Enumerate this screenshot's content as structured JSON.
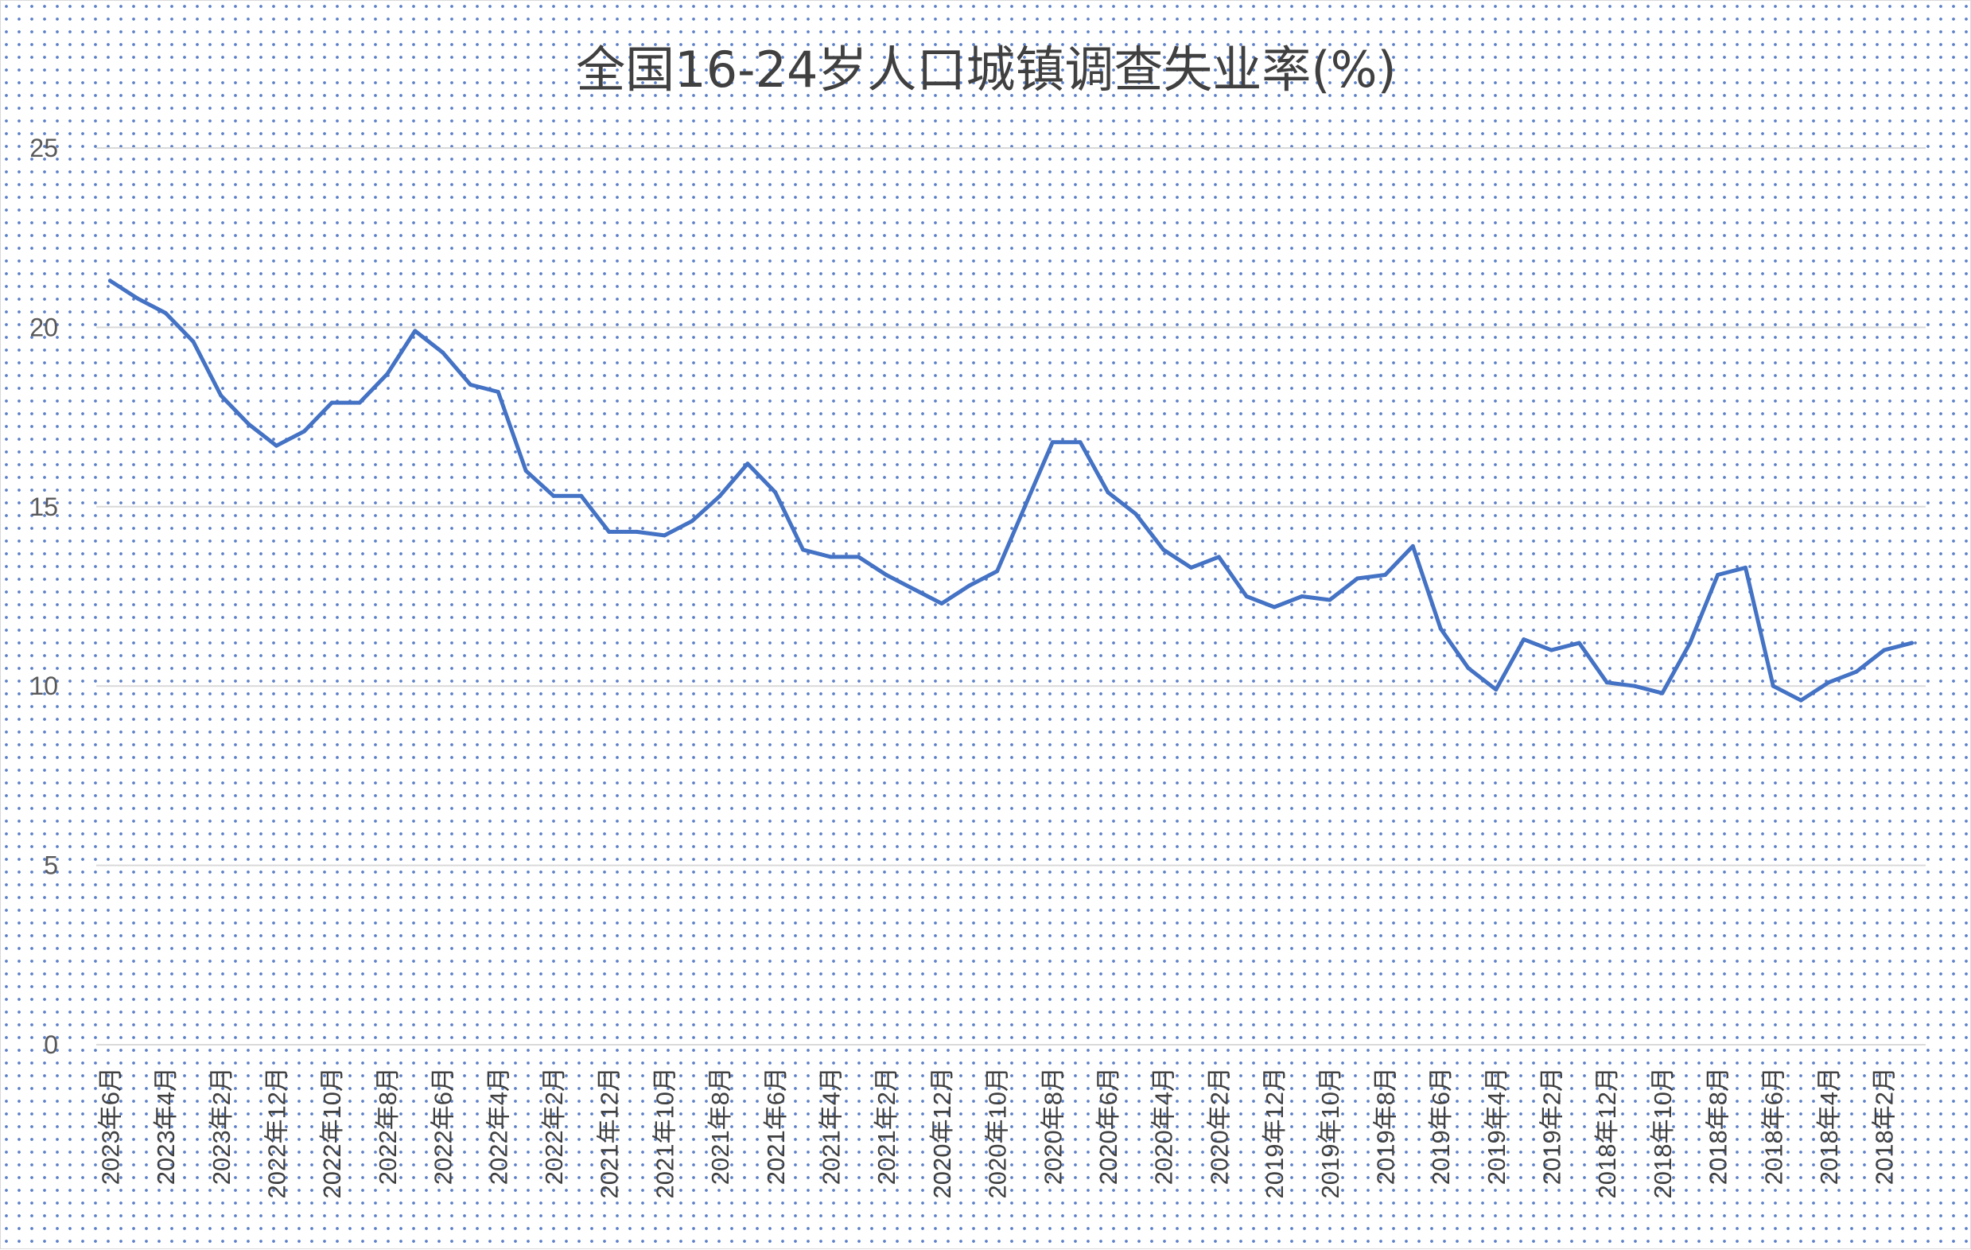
{
  "chart_data": {
    "type": "line",
    "title": "全国16-24岁人口城镇调查失业率(%)",
    "xlabel": "",
    "ylabel": "",
    "ylim": [
      0,
      25
    ],
    "yticks": [
      0,
      5,
      10,
      15,
      20,
      25
    ],
    "grid": true,
    "legend": "none",
    "line_color": "#4472c4",
    "x": [
      "2023年6月",
      "2023年5月",
      "2023年4月",
      "2023年3月",
      "2023年2月",
      "2023年1月",
      "2022年12月",
      "2022年11月",
      "2022年10月",
      "2022年9月",
      "2022年8月",
      "2022年7月",
      "2022年6月",
      "2022年5月",
      "2022年4月",
      "2022年3月",
      "2022年2月",
      "2022年1月",
      "2021年12月",
      "2021年11月",
      "2021年10月",
      "2021年9月",
      "2021年8月",
      "2021年7月",
      "2021年6月",
      "2021年5月",
      "2021年4月",
      "2021年3月",
      "2021年2月",
      "2021年1月",
      "2020年12月",
      "2020年11月",
      "2020年10月",
      "2020年9月",
      "2020年8月",
      "2020年7月",
      "2020年6月",
      "2020年5月",
      "2020年4月",
      "2020年3月",
      "2020年2月",
      "2020年1月",
      "2019年12月",
      "2019年11月",
      "2019年10月",
      "2019年9月",
      "2019年8月",
      "2019年7月",
      "2019年6月",
      "2019年5月",
      "2019年4月",
      "2019年3月",
      "2019年2月",
      "2019年1月",
      "2018年12月",
      "2018年11月",
      "2018年10月",
      "2018年9月",
      "2018年8月",
      "2018年7月",
      "2018年6月",
      "2018年5月",
      "2018年4月",
      "2018年3月",
      "2018年2月",
      "2018年1月"
    ],
    "xtick_labels": [
      "2023年6月",
      "2023年4月",
      "2023年2月",
      "2022年12月",
      "2022年10月",
      "2022年8月",
      "2022年6月",
      "2022年4月",
      "2022年2月",
      "2021年12月",
      "2021年10月",
      "2021年8月",
      "2021年6月",
      "2021年4月",
      "2021年2月",
      "2020年12月",
      "2020年10月",
      "2020年8月",
      "2020年6月",
      "2020年4月",
      "2020年2月",
      "2019年12月",
      "2019年10月",
      "2019年8月",
      "2019年6月",
      "2019年4月",
      "2019年2月",
      "2018年12月",
      "2018年10月",
      "2018年8月",
      "2018年6月",
      "2018年4月",
      "2018年2月"
    ],
    "values": [
      21.3,
      20.8,
      20.4,
      19.6,
      18.1,
      17.3,
      16.7,
      17.1,
      17.9,
      17.9,
      18.7,
      19.9,
      19.3,
      18.4,
      18.2,
      16.0,
      15.3,
      15.3,
      14.3,
      14.3,
      14.2,
      14.6,
      15.3,
      16.2,
      15.4,
      13.8,
      13.6,
      13.6,
      13.1,
      12.7,
      12.3,
      12.8,
      13.2,
      15.0,
      16.8,
      16.8,
      15.4,
      14.8,
      13.8,
      13.3,
      13.6,
      12.5,
      12.2,
      12.5,
      12.4,
      13.0,
      13.1,
      13.9,
      11.6,
      10.5,
      9.9,
      11.3,
      11.0,
      11.2,
      10.1,
      10.0,
      9.8,
      11.2,
      13.1,
      13.3,
      10.0,
      9.6,
      10.1,
      10.4,
      11.0,
      11.2
    ]
  }
}
